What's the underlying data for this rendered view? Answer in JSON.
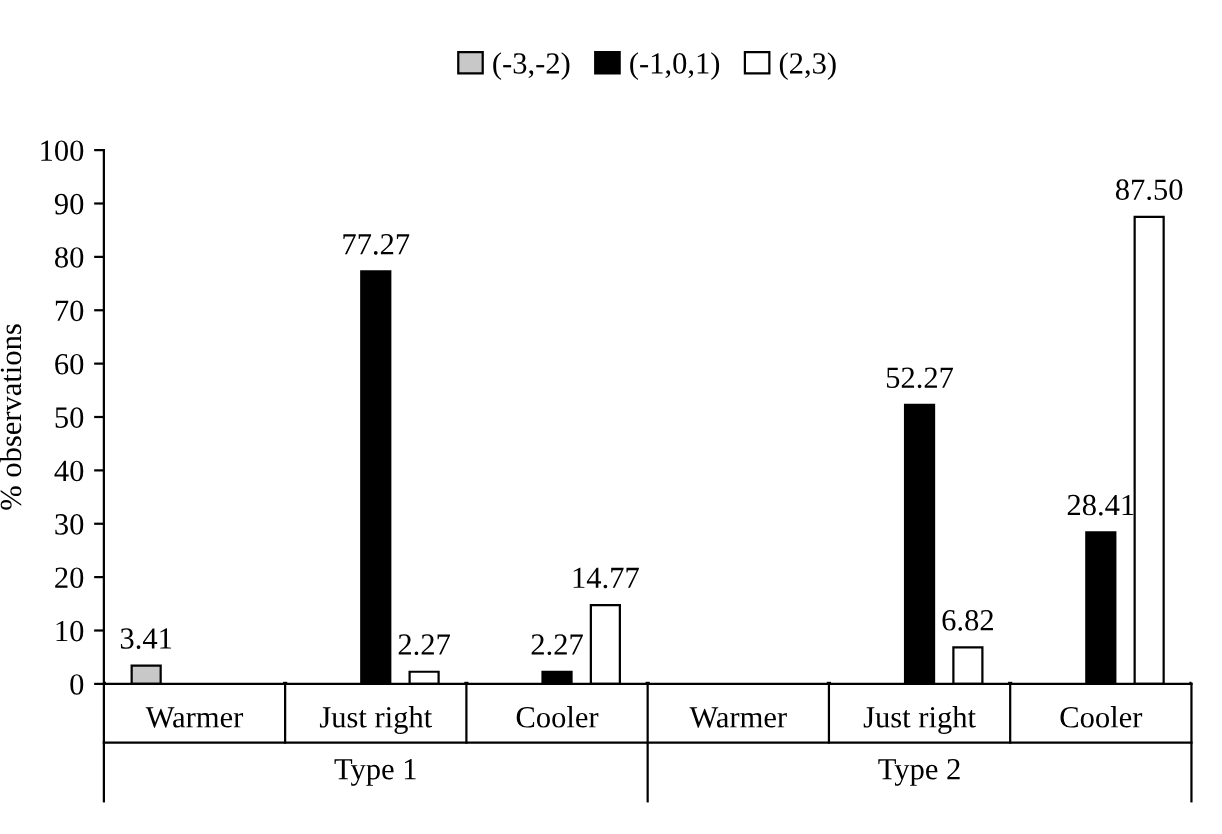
{
  "chart_data": {
    "type": "bar",
    "ylabel": "% observations",
    "categories": [
      "Warmer",
      "Just right",
      "Cooler",
      "Warmer",
      "Just right",
      "Cooler"
    ],
    "series": [
      {
        "name": "(-3,-2)",
        "color": "#c8c8c8",
        "values": [
          3.41,
          null,
          null,
          null,
          null,
          null
        ],
        "value_labels": [
          "3.41",
          null,
          null,
          null,
          null,
          null
        ]
      },
      {
        "name": "(-1,0,1)",
        "color": "#000000",
        "values": [
          null,
          77.27,
          2.27,
          null,
          52.27,
          28.41
        ],
        "value_labels": [
          null,
          "77.27",
          "2.27",
          null,
          "52.27",
          "28.41"
        ]
      },
      {
        "name": "(2,3)",
        "color": "#ffffff",
        "values": [
          null,
          2.27,
          14.77,
          null,
          6.82,
          87.5
        ],
        "value_labels": [
          null,
          "2.27",
          "14.77",
          null,
          "6.82",
          "87.50"
        ]
      }
    ],
    "annotations": [
      "Type 1",
      "Type 2"
    ],
    "ylim": [
      0,
      100
    ],
    "yticks": [
      0,
      10,
      20,
      30,
      40,
      50,
      60,
      70,
      80,
      90,
      100
    ],
    "grid": false,
    "legend": "top"
  }
}
